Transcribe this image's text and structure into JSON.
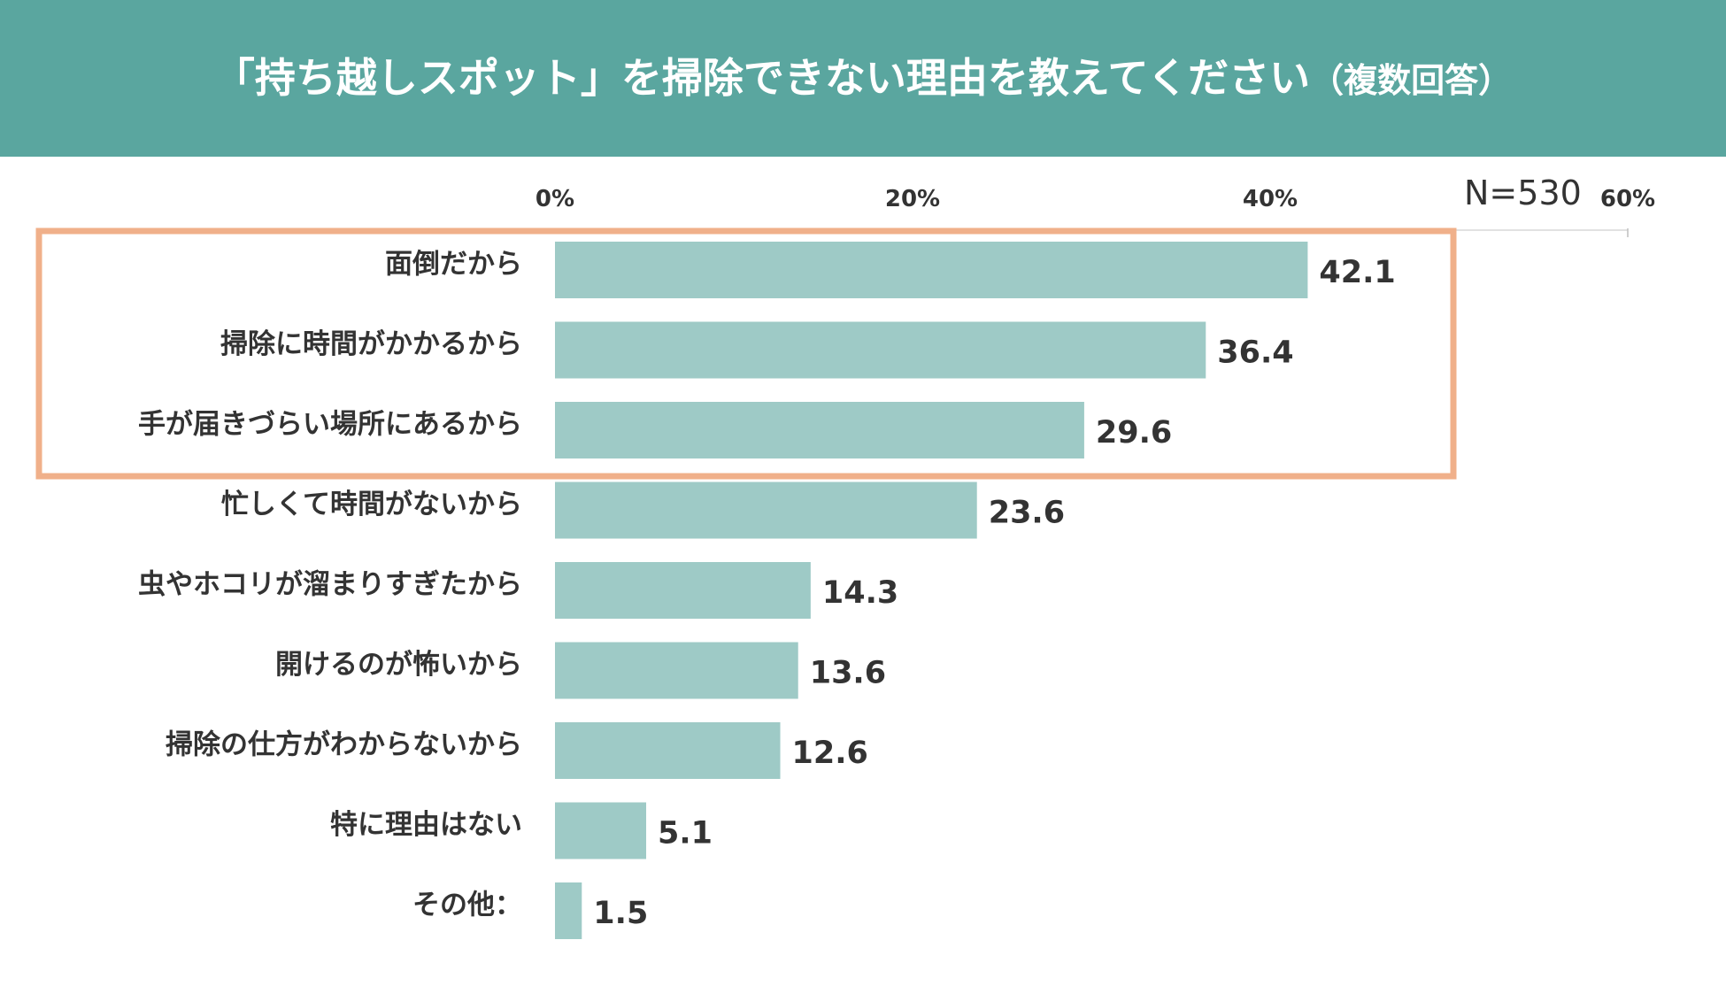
{
  "header": {
    "title": "「持ち越しスポット」を掃除できない理由を教えてください",
    "title_suffix": "（複数回答）"
  },
  "sample_size": "N=530",
  "colors": {
    "header_bg": "#5aa69f",
    "bar": "#9ecac6",
    "highlight_border": "#f0b08a",
    "text": "#333333",
    "header_text": "#ffffff"
  },
  "chart_data": {
    "type": "bar",
    "orientation": "horizontal",
    "title": "「持ち越しスポット」を掃除できない理由を教えてください（複数回答）",
    "categories": [
      "面倒だから",
      "掃除に時間がかかるから",
      "手が届きづらい場所にあるから",
      "忙しくて時間がないから",
      "虫やホコリが溜まりすぎたから",
      "開けるのが怖いから",
      "掃除の仕方がわからないから",
      "特に理由はない",
      "その他："
    ],
    "values": [
      42.1,
      36.4,
      29.6,
      23.6,
      14.3,
      13.6,
      12.6,
      5.1,
      1.5
    ],
    "value_labels": [
      "42.1",
      "36.4",
      "29.6",
      "23.6",
      "14.3",
      "13.6",
      "12.6",
      "5.1",
      "1.5"
    ],
    "xlim": [
      0,
      60
    ],
    "ticks": [
      0,
      20,
      40,
      60
    ],
    "tick_labels": [
      "0%",
      "20%",
      "40%",
      "60%"
    ],
    "highlighted_categories": [
      0,
      1,
      2
    ]
  }
}
